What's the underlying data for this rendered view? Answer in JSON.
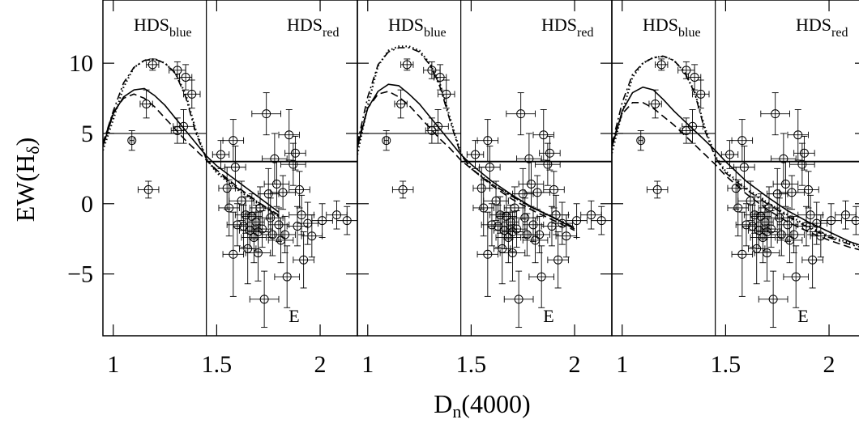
{
  "chart_data": {
    "type": "scatter",
    "x_label": [
      "D",
      "n",
      "(4000)"
    ],
    "y_label": [
      "EW(H",
      "δ",
      ")"
    ],
    "xlim": [
      0.95,
      2.18
    ],
    "ylim": [
      -9.4,
      14.5
    ],
    "xticks": [
      1,
      1.5,
      2
    ],
    "yticks": [
      10,
      5,
      0,
      {
        "value": -5,
        "label": "−5"
      }
    ],
    "annotations": {
      "blue": [
        "HDS",
        "blue"
      ],
      "red": [
        "HDS",
        "red"
      ],
      "e": "E"
    },
    "hds_boundary": {
      "x": 1.45,
      "blue_y": 5,
      "red_y": 3
    },
    "x": [
      1.09,
      1.16,
      1.17,
      1.19,
      1.31,
      1.35,
      1.31,
      1.34,
      1.38,
      1.52,
      1.58,
      1.59,
      1.55,
      1.56,
      1.58,
      1.62,
      1.63,
      1.65,
      1.66,
      1.67,
      1.68,
      1.69,
      1.7,
      1.71,
      1.72,
      1.73,
      1.74,
      1.75,
      1.76,
      1.77,
      1.78,
      1.79,
      1.8,
      1.81,
      1.82,
      1.83,
      1.84,
      1.85,
      1.87,
      1.88,
      1.89,
      1.9,
      1.91,
      1.92,
      1.94,
      1.96,
      2.01,
      2.08,
      2.13,
      1.6,
      1.64,
      1.7
    ],
    "values": [
      4.5,
      7.1,
      1.0,
      9.9,
      9.5,
      9.0,
      5.2,
      5.5,
      7.8,
      3.5,
      4.5,
      2.6,
      1.1,
      -0.3,
      -3.6,
      0.2,
      -1.6,
      -3.2,
      -1.9,
      -0.9,
      -2.4,
      -1.3,
      -3.5,
      -0.3,
      -1.8,
      -6.8,
      6.4,
      0.7,
      -1.0,
      -2.2,
      3.2,
      1.4,
      -1.5,
      -2.6,
      0.8,
      -2.2,
      -5.2,
      4.9,
      2.8,
      3.6,
      -1.6,
      1.0,
      -0.8,
      -4.0,
      -1.4,
      -2.3,
      -1.2,
      -0.8,
      -1.2,
      -1.5,
      -0.8,
      -2.0
    ],
    "xerr": [
      0.01,
      0.03,
      0.05,
      0.03,
      0.04,
      0.03,
      0.03,
      0.05,
      0.04,
      0.04,
      0.05,
      0.05,
      0.04,
      0.05,
      0.05,
      0.06,
      0.05,
      0.04,
      0.05,
      0.05,
      0.06,
      0.04,
      0.06,
      0.05,
      0.05,
      0.07,
      0.07,
      0.05,
      0.06,
      0.05,
      0.06,
      0.06,
      0.05,
      0.06,
      0.06,
      0.05,
      0.06,
      0.05,
      0.06,
      0.05,
      0.05,
      0.05,
      0.06,
      0.05,
      0.05,
      0.05,
      0.05,
      0.05,
      0.05,
      0.05,
      0.05,
      0.05
    ],
    "yerr": [
      0.7,
      1.0,
      0.6,
      0.4,
      0.6,
      0.9,
      0.9,
      1.2,
      1.0,
      1.0,
      1.5,
      1.5,
      1.5,
      2.0,
      3.0,
      1.4,
      1.5,
      2.5,
      1.3,
      1.6,
      1.8,
      1.2,
      2.0,
      1.5,
      1.3,
      2.0,
      1.5,
      1.8,
      1.4,
      1.5,
      1.8,
      1.6,
      1.2,
      1.6,
      1.2,
      1.3,
      2.2,
      1.8,
      1.5,
      1.2,
      1.4,
      1.3,
      1.4,
      2.0,
      1.5,
      1.5,
      1.2,
      1.0,
      1.0,
      1.5,
      1.3,
      1.4
    ],
    "panels": [
      {
        "x": [
          0.95,
          1.0,
          1.05,
          1.1,
          1.15,
          1.2,
          1.25,
          1.3,
          1.35,
          1.4,
          1.45,
          1.5,
          1.6,
          1.7,
          1.8,
          1.9,
          2.0,
          2.1,
          2.18
        ],
        "series": [
          {
            "style": "dotted",
            "values": [
              3.8,
              6.0,
              8.3,
              9.7,
              10.2,
              10.3,
              10.0,
              9.3,
              7.8,
              5.2,
              3.2,
              2.2,
              1.0,
              0.0,
              -0.9,
              null,
              null,
              null,
              null
            ]
          },
          {
            "style": "dashdot",
            "values": [
              4.3,
              6.6,
              8.6,
              9.7,
              10.2,
              10.3,
              10.0,
              9.3,
              7.6,
              5.0,
              3.2,
              2.3,
              1.1,
              0.1,
              -0.8,
              null,
              null,
              null,
              null
            ]
          },
          {
            "style": "solid",
            "values": [
              4.1,
              6.4,
              7.6,
              8.1,
              8.2,
              7.7,
              7.0,
              6.1,
              5.2,
              4.3,
              3.4,
              2.7,
              1.6,
              0.5,
              -0.6,
              null,
              null,
              null,
              null
            ]
          },
          {
            "style": "dashed",
            "values": [
              4.3,
              6.5,
              7.5,
              7.8,
              7.5,
              6.9,
              6.1,
              5.3,
              4.5,
              3.8,
              3.1,
              2.4,
              1.2,
              0.1,
              -0.9,
              null,
              null,
              null,
              null
            ]
          }
        ]
      },
      {
        "x": [
          0.95,
          1.0,
          1.05,
          1.1,
          1.15,
          1.2,
          1.25,
          1.3,
          1.35,
          1.4,
          1.45,
          1.5,
          1.6,
          1.7,
          1.8,
          1.9,
          2.0,
          2.1,
          2.18
        ],
        "series": [
          {
            "style": "dotted",
            "values": [
              3.5,
              7.0,
              9.8,
              10.9,
              11.2,
              11.2,
              10.9,
              10.0,
              8.5,
              6.0,
              3.6,
              2.5,
              1.4,
              0.5,
              -0.3,
              -1.0,
              -1.7,
              null,
              null
            ]
          },
          {
            "style": "dashdot",
            "values": [
              4.3,
              7.6,
              9.9,
              10.8,
              11.1,
              11.1,
              10.8,
              9.9,
              8.3,
              5.8,
              3.5,
              2.5,
              1.4,
              0.5,
              -0.3,
              -1.0,
              -1.7,
              null,
              null
            ]
          },
          {
            "style": "solid",
            "values": [
              4.0,
              6.8,
              8.0,
              8.5,
              8.4,
              7.8,
              7.1,
              6.2,
              5.3,
              4.4,
              3.5,
              2.8,
              1.6,
              0.6,
              -0.3,
              -1.0,
              -1.8,
              null,
              null
            ]
          },
          {
            "style": "dashed",
            "values": [
              4.3,
              6.8,
              7.8,
              8.0,
              7.6,
              7.0,
              6.2,
              5.4,
              4.6,
              3.9,
              3.1,
              2.5,
              1.3,
              0.3,
              -0.5,
              -1.2,
              -1.9,
              null,
              null
            ]
          }
        ]
      },
      {
        "x": [
          0.95,
          1.0,
          1.05,
          1.1,
          1.15,
          1.2,
          1.25,
          1.3,
          1.35,
          1.4,
          1.45,
          1.5,
          1.6,
          1.7,
          1.8,
          1.9,
          2.0,
          2.1,
          2.18
        ],
        "series": [
          {
            "style": "dotted",
            "values": [
              3.6,
              6.5,
              9.0,
              10.0,
              10.4,
              10.5,
              10.2,
              9.4,
              8.0,
              5.4,
              3.4,
              2.3,
              1.1,
              0.1,
              -0.8,
              -1.6,
              -2.3,
              -2.8,
              -3.1
            ]
          },
          {
            "style": "dashdot",
            "values": [
              4.2,
              7.2,
              9.2,
              10.0,
              10.4,
              10.5,
              10.2,
              9.4,
              7.9,
              5.2,
              3.3,
              2.2,
              1.0,
              0.0,
              -0.9,
              -1.7,
              -2.4,
              -2.9,
              -3.2
            ]
          },
          {
            "style": "solid",
            "values": [
              4.0,
              6.6,
              7.9,
              8.3,
              8.1,
              7.4,
              6.6,
              5.9,
              5.2,
              4.5,
              3.8,
              3.0,
              1.6,
              0.5,
              -0.5,
              -1.3,
              -2.0,
              -2.7,
              -3.1
            ]
          },
          {
            "style": "dashed",
            "values": [
              4.3,
              6.4,
              7.2,
              7.2,
              6.8,
              6.2,
              5.6,
              4.9,
              4.2,
              3.5,
              2.8,
              2.0,
              0.7,
              -0.4,
              -1.3,
              -2.0,
              -2.6,
              -3.1,
              -3.4
            ]
          }
        ]
      }
    ]
  }
}
